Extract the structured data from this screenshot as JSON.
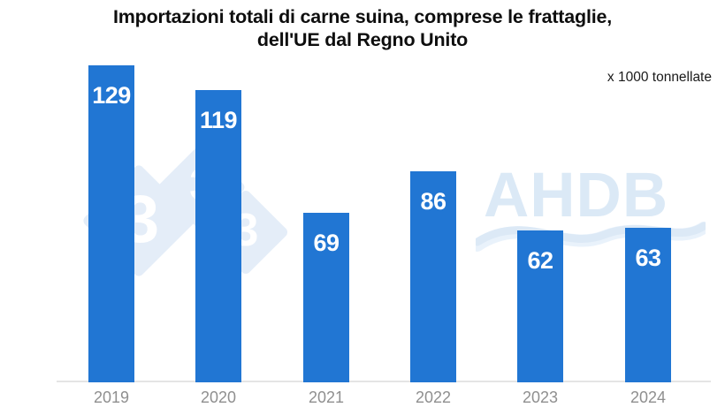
{
  "title": {
    "line1": "Importazioni totali di carne suina, comprese le frattaglie,",
    "line2": "dell'UE dal Regno Unito"
  },
  "unit_label": "x 1000 tonnellate",
  "watermarks": {
    "pig333_threes": [
      "3",
      "3",
      "3"
    ],
    "ahdb": "AHDB"
  },
  "colors": {
    "bar": "#2176d3",
    "bar_value_text": "#ffffff",
    "watermark_light_blue": "#e4edf8",
    "ahdb_light_blue": "#dbe9f6",
    "axis_line": "#e4e4e4",
    "tick_label": "#8f8f8f",
    "title_text": "#0e0e0e"
  },
  "chart_data": {
    "type": "bar",
    "title": "Importazioni totali di carne suina, comprese le frattaglie, dell'UE dal Regno Unito",
    "unit": "x 1000 tonnellate",
    "categories": [
      "2019",
      "2020",
      "2021",
      "2022",
      "2023",
      "2024"
    ],
    "values": [
      129,
      119,
      69,
      86,
      62,
      63
    ],
    "xlabel": "",
    "ylabel": "x 1000 tonnellate",
    "ylim": [
      0,
      140
    ],
    "grid": false,
    "legend": "none",
    "value_label_position": "inside-top"
  }
}
